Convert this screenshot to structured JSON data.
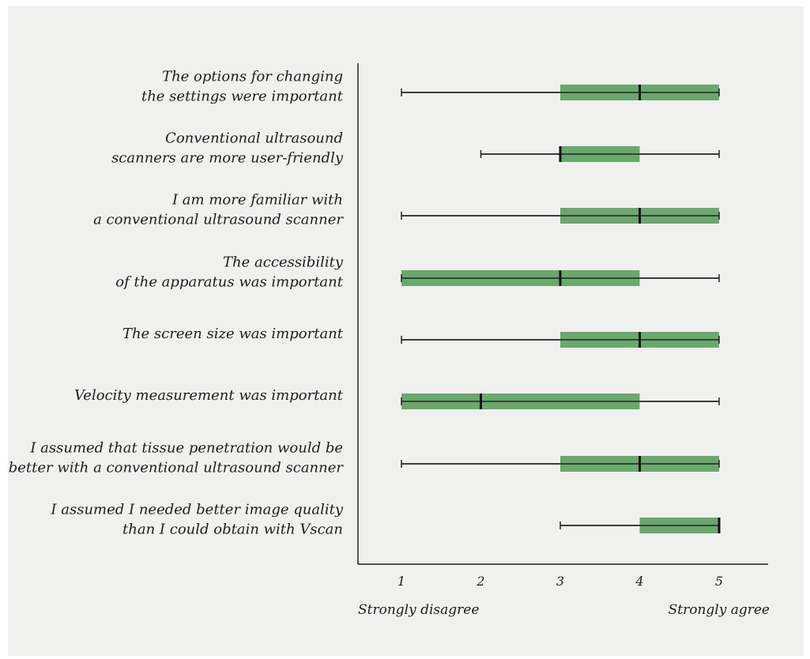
{
  "chart_data": {
    "type": "boxplot",
    "x_ticks": [
      1,
      2,
      3,
      4,
      5
    ],
    "xlim": [
      1,
      5
    ],
    "left_anchor_label": "Strongly disagree",
    "right_anchor_label": "Strongly agree",
    "box_color": "#6aa86d",
    "items": [
      {
        "label": [
          "The options for changing",
          "the settings were important"
        ],
        "min": 1,
        "q1": 3,
        "median": 4,
        "q3": 5,
        "max": 5
      },
      {
        "label": [
          "Conventional ultrasound",
          "scanners are more user-friendly"
        ],
        "min": 2,
        "q1": 3,
        "median": 3,
        "q3": 4,
        "max": 5
      },
      {
        "label": [
          "I am more familiar with",
          "a conventional ultrasound scanner"
        ],
        "min": 1,
        "q1": 3,
        "median": 4,
        "q3": 5,
        "max": 5
      },
      {
        "label": [
          "The accessibility",
          "of the apparatus was important"
        ],
        "min": 1,
        "q1": 1,
        "median": 3,
        "q3": 4,
        "max": 5
      },
      {
        "label": [
          "The screen size was important"
        ],
        "min": 1,
        "q1": 3,
        "median": 4,
        "q3": 5,
        "max": 5
      },
      {
        "label": [
          "Velocity measurement was important"
        ],
        "min": 1,
        "q1": 1,
        "median": 2,
        "q3": 4,
        "max": 5
      },
      {
        "label": [
          "I assumed that tissue penetration would be",
          "better with a conventional ultrasound scanner"
        ],
        "min": 1,
        "q1": 3,
        "median": 4,
        "q3": 5,
        "max": 5
      },
      {
        "label": [
          "I assumed I needed better image quality",
          "than I could obtain with Vscan"
        ],
        "min": 3,
        "q1": 4,
        "median": 5,
        "q3": 5,
        "max": 5
      }
    ]
  }
}
